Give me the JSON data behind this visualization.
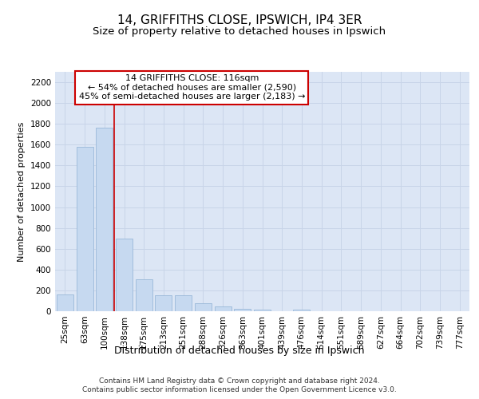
{
  "title1": "14, GRIFFITHS CLOSE, IPSWICH, IP4 3ER",
  "title2": "Size of property relative to detached houses in Ipswich",
  "xlabel": "Distribution of detached houses by size in Ipswich",
  "ylabel": "Number of detached properties",
  "categories": [
    "25sqm",
    "63sqm",
    "100sqm",
    "138sqm",
    "175sqm",
    "213sqm",
    "251sqm",
    "288sqm",
    "326sqm",
    "363sqm",
    "401sqm",
    "439sqm",
    "476sqm",
    "514sqm",
    "551sqm",
    "589sqm",
    "627sqm",
    "664sqm",
    "702sqm",
    "739sqm",
    "777sqm"
  ],
  "values": [
    160,
    1580,
    1760,
    700,
    310,
    155,
    155,
    80,
    45,
    25,
    15,
    0,
    15,
    0,
    0,
    0,
    0,
    0,
    0,
    0,
    0
  ],
  "bar_color": "#c6d9f0",
  "bar_edge_color": "#9ab8d8",
  "vline_x_idx": 2,
  "vline_color": "#cc0000",
  "annotation_text": "14 GRIFFITHS CLOSE: 116sqm\n← 54% of detached houses are smaller (2,590)\n45% of semi-detached houses are larger (2,183) →",
  "annotation_box_color": "white",
  "annotation_box_edge": "#cc0000",
  "ylim": [
    0,
    2300
  ],
  "yticks": [
    0,
    200,
    400,
    600,
    800,
    1000,
    1200,
    1400,
    1600,
    1800,
    2000,
    2200
  ],
  "grid_color": "#c8d4e8",
  "bg_color": "#dce6f5",
  "footer1": "Contains HM Land Registry data © Crown copyright and database right 2024.",
  "footer2": "Contains public sector information licensed under the Open Government Licence v3.0.",
  "title1_fontsize": 11,
  "title2_fontsize": 9.5,
  "xlabel_fontsize": 9,
  "ylabel_fontsize": 8,
  "tick_fontsize": 7.5,
  "ann_fontsize": 8,
  "footer_fontsize": 6.5
}
